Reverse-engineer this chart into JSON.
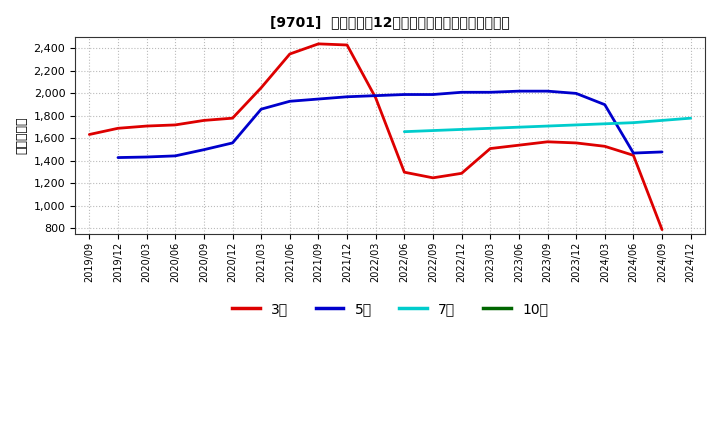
{
  "title": "[9701]  当期純利益12か月移動合計の標準偏差の推移",
  "ylabel": "（百万円）",
  "ylim": [
    750,
    2500
  ],
  "yticks": [
    800,
    1000,
    1200,
    1400,
    1600,
    1800,
    2000,
    2200,
    2400
  ],
  "background_color": "#ffffff",
  "plot_bg_color": "#ffffff",
  "grid_color": "#aaaaaa",
  "series": {
    "3年": {
      "color": "#dd0000",
      "dates": [
        "2019/09",
        "2019/12",
        "2020/03",
        "2020/06",
        "2020/09",
        "2020/12",
        "2021/03",
        "2021/06",
        "2021/09",
        "2021/12",
        "2022/03",
        "2022/06",
        "2022/09",
        "2022/12",
        "2023/03",
        "2023/06",
        "2023/09",
        "2023/12",
        "2024/03",
        "2024/06",
        "2024/09"
      ],
      "values": [
        1635,
        1690,
        1710,
        1720,
        1760,
        1780,
        2050,
        2350,
        2440,
        2430,
        1960,
        1300,
        1250,
        1290,
        1510,
        1540,
        1570,
        1560,
        1530,
        1450,
        790
      ]
    },
    "5年": {
      "color": "#0000cc",
      "dates": [
        "2019/12",
        "2020/03",
        "2020/06",
        "2020/09",
        "2020/12",
        "2021/03",
        "2021/06",
        "2021/09",
        "2021/12",
        "2022/03",
        "2022/06",
        "2022/09",
        "2022/12",
        "2023/03",
        "2023/06",
        "2023/09",
        "2023/12",
        "2024/03",
        "2024/06",
        "2024/09"
      ],
      "values": [
        1430,
        1435,
        1445,
        1500,
        1560,
        1860,
        1930,
        1950,
        1970,
        1980,
        1990,
        1990,
        2010,
        2010,
        2020,
        2020,
        2000,
        1900,
        1470,
        1480
      ]
    },
    "7年": {
      "color": "#00cccc",
      "dates": [
        "2022/06",
        "2022/09",
        "2022/12",
        "2023/03",
        "2023/06",
        "2023/09",
        "2023/12",
        "2024/03",
        "2024/06",
        "2024/09",
        "2024/12"
      ],
      "values": [
        1660,
        1670,
        1680,
        1690,
        1700,
        1710,
        1720,
        1730,
        1740,
        1760,
        1780
      ]
    },
    "10年": {
      "color": "#006600",
      "dates": [],
      "values": []
    }
  },
  "legend": {
    "labels": [
      "3年",
      "5年",
      "7年",
      "10年"
    ],
    "colors": [
      "#dd0000",
      "#0000cc",
      "#00cccc",
      "#006600"
    ]
  },
  "x_ticklabels": [
    "2019/09",
    "2019/12",
    "2020/03",
    "2020/06",
    "2020/09",
    "2020/12",
    "2021/03",
    "2021/06",
    "2021/09",
    "2021/12",
    "2022/03",
    "2022/06",
    "2022/09",
    "2022/12",
    "2023/03",
    "2023/06",
    "2023/09",
    "2023/12",
    "2024/03",
    "2024/06",
    "2024/09",
    "2024/12"
  ]
}
